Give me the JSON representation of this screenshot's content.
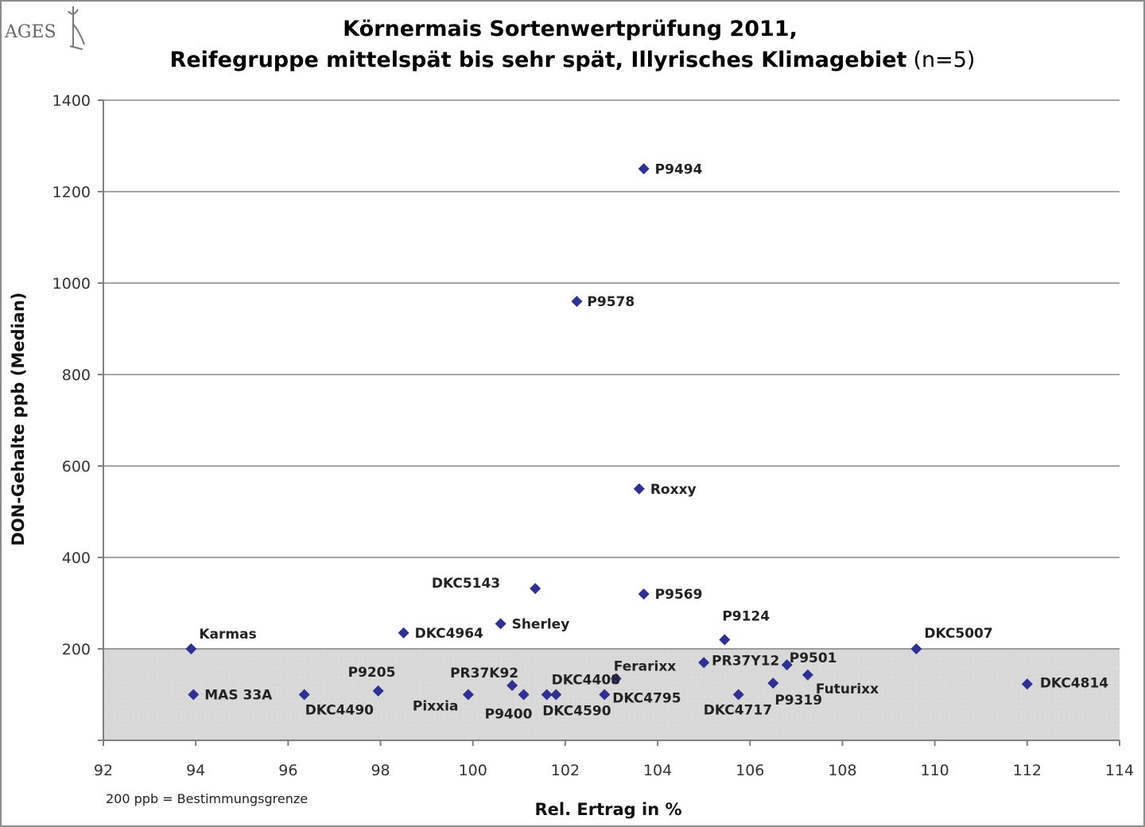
{
  "logo": {
    "text": "AGES"
  },
  "chart_data": {
    "type": "scatter",
    "title_line1": "Körnermais Sortenwertprüfung 2011,",
    "title_line2": "Reifegruppe mittelspät bis sehr spät, Illyrisches Klimagebiet",
    "title_n": "(n=5)",
    "xlabel": "Rel. Ertrag in %",
    "ylabel": "DON-Gehalte ppb (Median)",
    "xlim": [
      92,
      114
    ],
    "ylim": [
      0,
      1400
    ],
    "xticks": [
      92,
      94,
      96,
      98,
      100,
      102,
      104,
      106,
      108,
      110,
      112,
      114
    ],
    "yticks": [
      200,
      400,
      600,
      800,
      1000,
      1200,
      1400
    ],
    "grid": true,
    "marker_color": "#2e3192",
    "shaded_region": {
      "y_from": 0,
      "y_to": 200,
      "color": "#d9d9d9"
    },
    "footnote": "200 ppb = Bestimmungsgrenze",
    "points": [
      {
        "name": "P9494",
        "x": 103.7,
        "y": 1250
      },
      {
        "name": "P9578",
        "x": 102.25,
        "y": 960
      },
      {
        "name": "Roxxy",
        "x": 103.6,
        "y": 550
      },
      {
        "name": "DKC5143",
        "x": 101.35,
        "y": 332
      },
      {
        "name": "P9569",
        "x": 103.7,
        "y": 320
      },
      {
        "name": "Sherley",
        "x": 100.6,
        "y": 255
      },
      {
        "name": "DKC4964",
        "x": 98.5,
        "y": 235
      },
      {
        "name": "P9124",
        "x": 105.45,
        "y": 220
      },
      {
        "name": "Karmas",
        "x": 93.9,
        "y": 200
      },
      {
        "name": "DKC5007",
        "x": 109.6,
        "y": 200
      },
      {
        "name": "PR37Y12",
        "x": 105.0,
        "y": 170
      },
      {
        "name": "P9501",
        "x": 106.8,
        "y": 165
      },
      {
        "name": "Futurixx",
        "x": 107.25,
        "y": 143
      },
      {
        "name": "Ferarixx",
        "x": 103.1,
        "y": 135
      },
      {
        "name": "PR37K92",
        "x": 100.85,
        "y": 120
      },
      {
        "name": "P9319",
        "x": 106.5,
        "y": 125
      },
      {
        "name": "DKC4814",
        "x": 112.0,
        "y": 123
      },
      {
        "name": "P9205",
        "x": 97.95,
        "y": 108
      },
      {
        "name": "MAS 33A",
        "x": 93.95,
        "y": 100
      },
      {
        "name": "DKC4490",
        "x": 96.35,
        "y": 100
      },
      {
        "name": "Pixxia",
        "x": 99.9,
        "y": 100
      },
      {
        "name": "P9400",
        "x": 101.1,
        "y": 100
      },
      {
        "name": "DKC4408",
        "x": 101.6,
        "y": 100
      },
      {
        "name": "DKC4590",
        "x": 101.8,
        "y": 100
      },
      {
        "name": "DKC4795",
        "x": 102.85,
        "y": 100
      },
      {
        "name": "DKC4717",
        "x": 105.75,
        "y": 100
      }
    ]
  }
}
